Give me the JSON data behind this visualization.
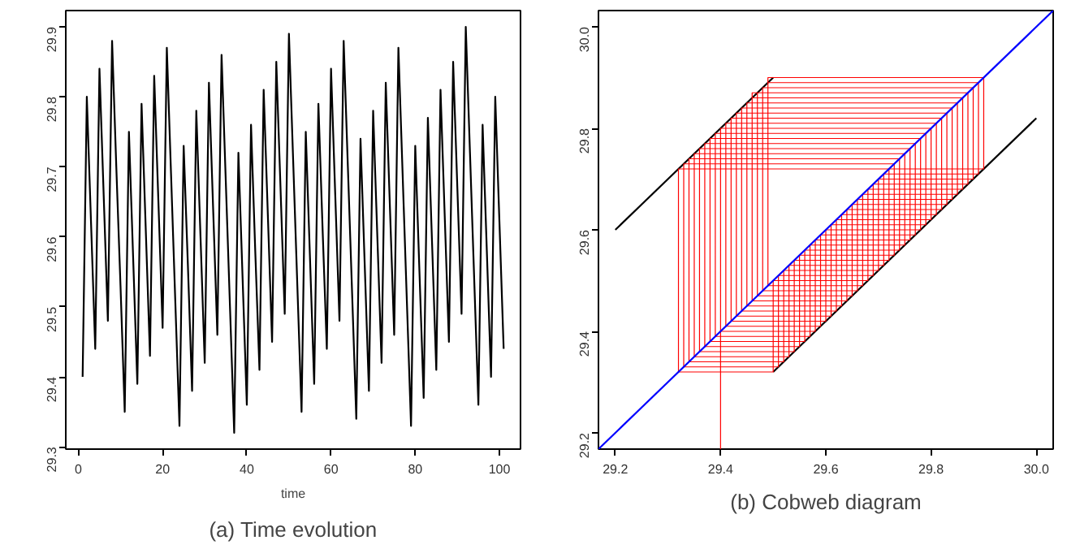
{
  "chart_data": [
    {
      "type": "line",
      "title": "(a) Time evolution",
      "xlabel": "time",
      "color": "#000000",
      "grid": false,
      "xlim": [
        -3,
        105
      ],
      "xticks": [
        0,
        20,
        40,
        60,
        80,
        100
      ],
      "ylim": [
        29.2968,
        29.9232
      ],
      "yticks": [
        29.3,
        29.4,
        29.5,
        29.6,
        29.7,
        29.8,
        29.9
      ],
      "x": [
        1,
        2,
        3,
        4,
        5,
        6,
        7,
        8,
        9,
        10,
        11,
        12,
        13,
        14,
        15,
        16,
        17,
        18,
        19,
        20,
        21,
        22,
        23,
        24,
        25,
        26,
        27,
        28,
        29,
        30,
        31,
        32,
        33,
        34,
        35,
        36,
        37,
        38,
        39,
        40,
        41,
        42,
        43,
        44,
        45,
        46,
        47,
        48,
        49,
        50,
        51,
        52,
        53,
        54,
        55,
        56,
        57,
        58,
        59,
        60,
        61,
        62,
        63,
        64,
        65,
        66,
        67,
        68,
        69,
        70,
        71,
        72,
        73,
        74,
        75,
        76,
        77,
        78,
        79,
        80,
        81,
        82,
        83,
        84,
        85,
        86,
        87,
        88,
        89,
        90,
        91,
        92,
        93,
        94,
        95,
        96,
        97,
        98,
        99,
        100,
        101
      ],
      "values": [
        29.4,
        29.8,
        29.62,
        29.44,
        29.84,
        29.66,
        29.48,
        29.88,
        29.7,
        29.53,
        29.35,
        29.75,
        29.57,
        29.39,
        29.79,
        29.61,
        29.43,
        29.83,
        29.65,
        29.47,
        29.87,
        29.69,
        29.51,
        29.33,
        29.73,
        29.56,
        29.38,
        29.78,
        29.6,
        29.42,
        29.82,
        29.64,
        29.46,
        29.86,
        29.68,
        29.5,
        29.32,
        29.72,
        29.54,
        29.36,
        29.76,
        29.58,
        29.41,
        29.81,
        29.63,
        29.45,
        29.85,
        29.67,
        29.49,
        29.89,
        29.71,
        29.53,
        29.35,
        29.75,
        29.57,
        29.39,
        29.79,
        29.61,
        29.44,
        29.84,
        29.66,
        29.48,
        29.88,
        29.7,
        29.52,
        29.34,
        29.74,
        29.56,
        29.38,
        29.78,
        29.6,
        29.42,
        29.82,
        29.64,
        29.46,
        29.87,
        29.69,
        29.51,
        29.33,
        29.73,
        29.55,
        29.37,
        29.77,
        29.59,
        29.41,
        29.81,
        29.63,
        29.45,
        29.85,
        29.67,
        29.49,
        29.9,
        29.72,
        29.54,
        29.36,
        29.76,
        29.58,
        29.4,
        29.8,
        29.62,
        29.44
      ]
    },
    {
      "type": "line",
      "title": "(b) Cobweb diagram",
      "grid": false,
      "xlim": [
        29.168,
        30.032
      ],
      "xticks": [
        29.2,
        29.4,
        29.6,
        29.8,
        {
          "value": 30,
          "label": "30.0"
        }
      ],
      "ylim": [
        29.168,
        30.032
      ],
      "yticks": [
        29.2,
        29.4,
        29.6,
        29.8,
        {
          "value": 30,
          "label": "30.0"
        }
      ],
      "series": [
        {
          "color": "#000000",
          "x": [
            29.2,
            29.5
          ],
          "values": [
            29.6,
            29.9
          ]
        },
        {
          "color": "#000000",
          "x": [
            29.5,
            30.0
          ],
          "values": [
            29.32,
            29.82
          ]
        },
        {
          "color": "#ff0000",
          "x": [
            29.4,
            29.4,
            29.8,
            29.8,
            29.62,
            29.62,
            29.44,
            29.44,
            29.84,
            29.84,
            29.66,
            29.66,
            29.48,
            29.48,
            29.88,
            29.88,
            29.7,
            29.7,
            29.53,
            29.53,
            29.35,
            29.35,
            29.75,
            29.75,
            29.57,
            29.57,
            29.39,
            29.39,
            29.79,
            29.79,
            29.61,
            29.61,
            29.43,
            29.43,
            29.83,
            29.83,
            29.65,
            29.65,
            29.47,
            29.47,
            29.87,
            29.87,
            29.69,
            29.69,
            29.51,
            29.51,
            29.33,
            29.33,
            29.73,
            29.73,
            29.56,
            29.56,
            29.38,
            29.38,
            29.78,
            29.78,
            29.6,
            29.6,
            29.42,
            29.42,
            29.82,
            29.82,
            29.64,
            29.64,
            29.46,
            29.46,
            29.86,
            29.86,
            29.68,
            29.68,
            29.5,
            29.5,
            29.32,
            29.32,
            29.72,
            29.72,
            29.54,
            29.54,
            29.36,
            29.36,
            29.76,
            29.76,
            29.58,
            29.58,
            29.41,
            29.41,
            29.81,
            29.81,
            29.63,
            29.63,
            29.45,
            29.45,
            29.85,
            29.85,
            29.67,
            29.67,
            29.49,
            29.49,
            29.89,
            29.89,
            29.71,
            29.71,
            29.53,
            29.53,
            29.35,
            29.35,
            29.75,
            29.75,
            29.57,
            29.57,
            29.39,
            29.39,
            29.79,
            29.79,
            29.61,
            29.61,
            29.44,
            29.44,
            29.84,
            29.84,
            29.66,
            29.66,
            29.48,
            29.48,
            29.88,
            29.88,
            29.7,
            29.7,
            29.52,
            29.52,
            29.34,
            29.34,
            29.74,
            29.74,
            29.56,
            29.56,
            29.38,
            29.38,
            29.78,
            29.78,
            29.6,
            29.6,
            29.42,
            29.42,
            29.82,
            29.82,
            29.64,
            29.64,
            29.46,
            29.46,
            29.87,
            29.87,
            29.69,
            29.69,
            29.51,
            29.51,
            29.33,
            29.33,
            29.73,
            29.73,
            29.55,
            29.55,
            29.37,
            29.37,
            29.77,
            29.77,
            29.59,
            29.59,
            29.41,
            29.41,
            29.81,
            29.81,
            29.63,
            29.63,
            29.45,
            29.45,
            29.85,
            29.85,
            29.67,
            29.67,
            29.49,
            29.49,
            29.9,
            29.9,
            29.72,
            29.72,
            29.54,
            29.54,
            29.36,
            29.36,
            29.76,
            29.76,
            29.58,
            29.58,
            29.4,
            29.4,
            29.8,
            29.8,
            29.62,
            29.62,
            29.44
          ],
          "values": [
            29.168,
            29.8,
            29.8,
            29.62,
            29.62,
            29.44,
            29.44,
            29.84,
            29.84,
            29.66,
            29.66,
            29.48,
            29.48,
            29.88,
            29.88,
            29.7,
            29.7,
            29.53,
            29.53,
            29.35,
            29.35,
            29.75,
            29.75,
            29.57,
            29.57,
            29.39,
            29.39,
            29.79,
            29.79,
            29.61,
            29.61,
            29.43,
            29.43,
            29.83,
            29.83,
            29.65,
            29.65,
            29.47,
            29.47,
            29.87,
            29.87,
            29.69,
            29.69,
            29.51,
            29.51,
            29.33,
            29.33,
            29.73,
            29.73,
            29.56,
            29.56,
            29.38,
            29.38,
            29.78,
            29.78,
            29.6,
            29.6,
            29.42,
            29.42,
            29.82,
            29.82,
            29.64,
            29.64,
            29.46,
            29.46,
            29.86,
            29.86,
            29.68,
            29.68,
            29.5,
            29.5,
            29.32,
            29.32,
            29.72,
            29.72,
            29.54,
            29.54,
            29.36,
            29.36,
            29.76,
            29.76,
            29.58,
            29.58,
            29.41,
            29.41,
            29.81,
            29.81,
            29.63,
            29.63,
            29.45,
            29.45,
            29.85,
            29.85,
            29.67,
            29.67,
            29.49,
            29.49,
            29.89,
            29.89,
            29.71,
            29.71,
            29.53,
            29.53,
            29.35,
            29.35,
            29.75,
            29.75,
            29.57,
            29.57,
            29.39,
            29.39,
            29.79,
            29.79,
            29.61,
            29.61,
            29.44,
            29.44,
            29.84,
            29.84,
            29.66,
            29.66,
            29.48,
            29.48,
            29.88,
            29.88,
            29.7,
            29.7,
            29.52,
            29.52,
            29.34,
            29.34,
            29.74,
            29.74,
            29.56,
            29.56,
            29.38,
            29.38,
            29.78,
            29.78,
            29.6,
            29.6,
            29.42,
            29.42,
            29.82,
            29.82,
            29.64,
            29.64,
            29.46,
            29.46,
            29.87,
            29.87,
            29.69,
            29.69,
            29.51,
            29.51,
            29.33,
            29.33,
            29.73,
            29.73,
            29.55,
            29.55,
            29.37,
            29.37,
            29.77,
            29.77,
            29.59,
            29.59,
            29.41,
            29.41,
            29.81,
            29.81,
            29.63,
            29.63,
            29.45,
            29.45,
            29.85,
            29.85,
            29.67,
            29.67,
            29.49,
            29.49,
            29.9,
            29.9,
            29.72,
            29.72,
            29.54,
            29.54,
            29.36,
            29.36,
            29.76,
            29.76,
            29.58,
            29.58,
            29.4,
            29.4,
            29.8,
            29.8,
            29.62,
            29.62,
            29.44,
            29.44
          ]
        },
        {
          "color": "#0000ff",
          "x": [
            29.168,
            30.032
          ],
          "values": [
            29.168,
            30.032
          ]
        }
      ]
    }
  ]
}
